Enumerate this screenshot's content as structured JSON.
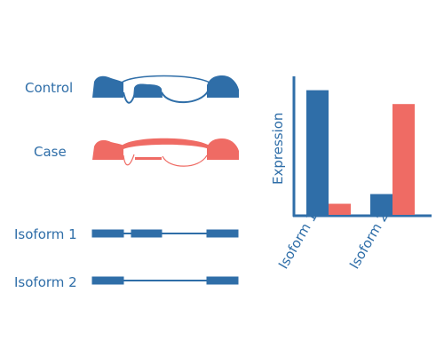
{
  "colors": {
    "control": "#2f6ea8",
    "case": "#ef6b64",
    "text": "#2f6ea8"
  },
  "samples": {
    "control_label": "Control",
    "case_label": "Case"
  },
  "isoforms": {
    "isoform1_label": "Isoform 1",
    "isoform2_label": "Isoform 2",
    "isoform1_exons": [
      1,
      2,
      3
    ],
    "isoform2_exons": [
      1,
      3
    ]
  },
  "chart_data": {
    "type": "bar",
    "ylabel": "Expression",
    "categories": [
      "Isoform 1",
      "Isoform 2"
    ],
    "series": [
      {
        "values": [
          0.9,
          0.15
        ]
      },
      {
        "values": [
          0.08,
          0.8
        ]
      }
    ],
    "ylim": [
      0,
      1
    ],
    "grid": false
  }
}
